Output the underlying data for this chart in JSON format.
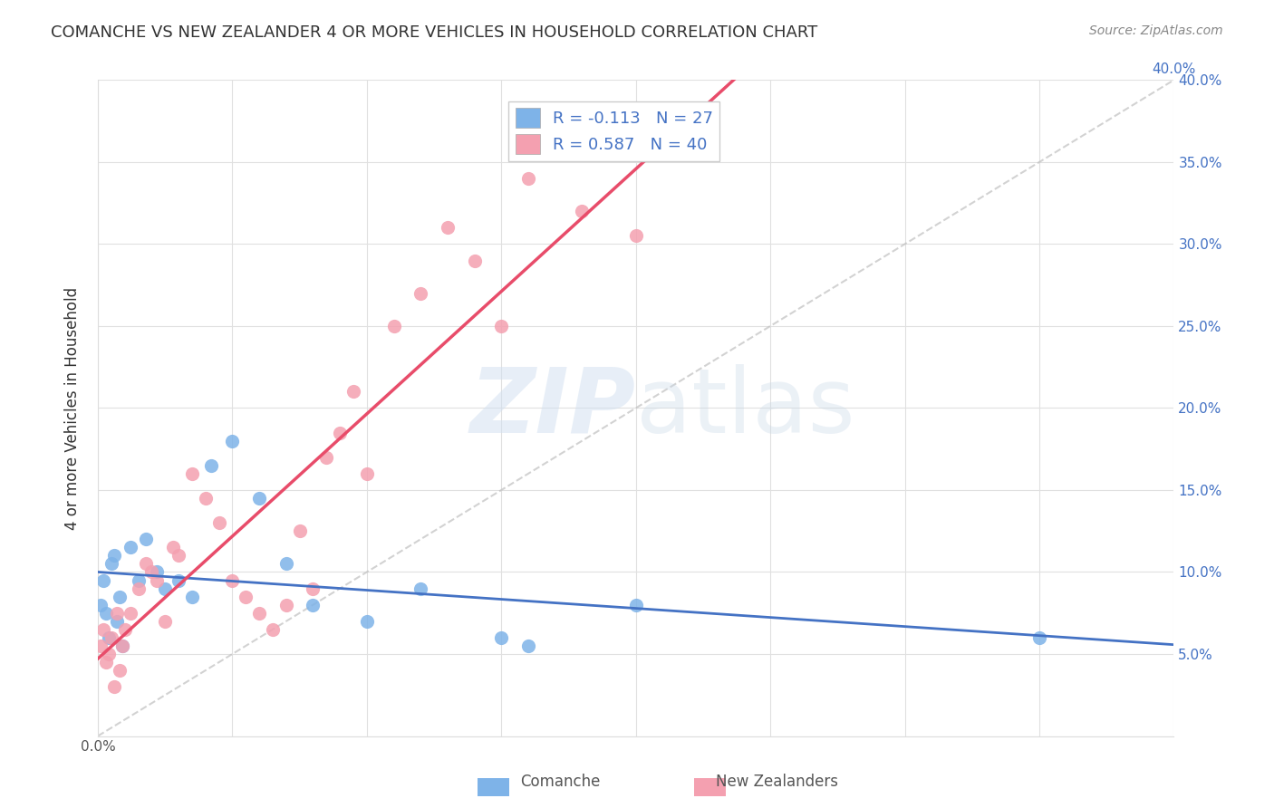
{
  "title": "COMANCHE VS NEW ZEALANDER 4 OR MORE VEHICLES IN HOUSEHOLD CORRELATION CHART",
  "source": "Source: ZipAtlas.com",
  "ylabel": "4 or more Vehicles in Household",
  "xlim": [
    0.0,
    0.4
  ],
  "ylim": [
    0.0,
    0.4
  ],
  "comanche_color": "#7EB3E8",
  "nz_color": "#F4A0B0",
  "trendline_comanche_color": "#4472C4",
  "trendline_nz_color": "#E84C6A",
  "identity_line_color": "#C0C0C0",
  "legend_R_comanche": "R = -0.113",
  "legend_N_comanche": "N = 27",
  "legend_R_nz": "R = 0.587",
  "legend_N_nz": "N = 40",
  "background_color": "#ffffff",
  "comanche_x": [
    0.001,
    0.002,
    0.003,
    0.004,
    0.005,
    0.006,
    0.007,
    0.008,
    0.009,
    0.012,
    0.015,
    0.018,
    0.022,
    0.025,
    0.03,
    0.035,
    0.042,
    0.05,
    0.06,
    0.07,
    0.08,
    0.1,
    0.12,
    0.15,
    0.16,
    0.2,
    0.35
  ],
  "comanche_y": [
    0.08,
    0.095,
    0.075,
    0.06,
    0.105,
    0.11,
    0.07,
    0.085,
    0.055,
    0.115,
    0.095,
    0.12,
    0.1,
    0.09,
    0.095,
    0.085,
    0.165,
    0.18,
    0.145,
    0.105,
    0.08,
    0.07,
    0.09,
    0.06,
    0.055,
    0.08,
    0.06
  ],
  "nz_x": [
    0.001,
    0.002,
    0.003,
    0.004,
    0.005,
    0.006,
    0.007,
    0.008,
    0.009,
    0.01,
    0.012,
    0.015,
    0.018,
    0.02,
    0.022,
    0.025,
    0.028,
    0.03,
    0.035,
    0.04,
    0.045,
    0.05,
    0.055,
    0.06,
    0.065,
    0.07,
    0.075,
    0.08,
    0.085,
    0.09,
    0.095,
    0.1,
    0.11,
    0.12,
    0.13,
    0.14,
    0.15,
    0.16,
    0.18,
    0.2
  ],
  "nz_y": [
    0.055,
    0.065,
    0.045,
    0.05,
    0.06,
    0.03,
    0.075,
    0.04,
    0.055,
    0.065,
    0.075,
    0.09,
    0.105,
    0.1,
    0.095,
    0.07,
    0.115,
    0.11,
    0.16,
    0.145,
    0.13,
    0.095,
    0.085,
    0.075,
    0.065,
    0.08,
    0.125,
    0.09,
    0.17,
    0.185,
    0.21,
    0.16,
    0.25,
    0.27,
    0.31,
    0.29,
    0.25,
    0.34,
    0.32,
    0.305
  ]
}
